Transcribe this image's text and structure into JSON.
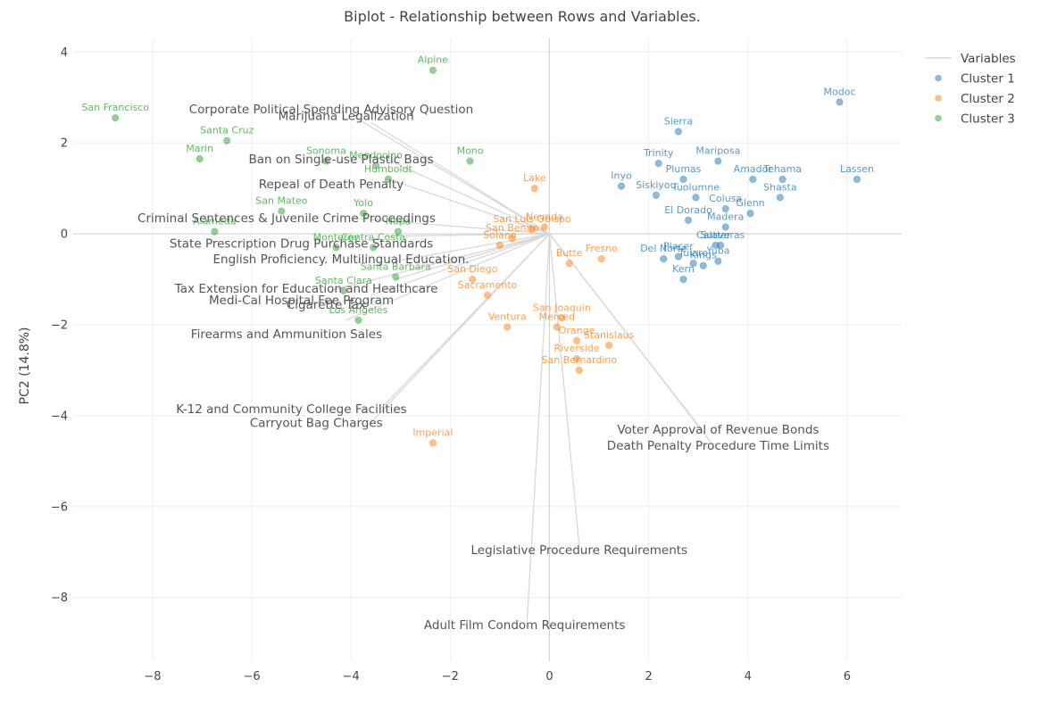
{
  "chart_data": {
    "type": "scatter",
    "title": "Biplot - Relationship between Rows and Variables.",
    "xlabel": "",
    "ylabel": "PC2 (14.8%)",
    "xlim": [
      -9.6,
      7.1
    ],
    "ylim": [
      -9.4,
      4.3
    ],
    "xticks": [
      -8,
      -6,
      -4,
      -2,
      0,
      2,
      4,
      6
    ],
    "yticks": [
      4,
      2,
      0,
      -2,
      -4,
      -6,
      -8
    ],
    "grid": true,
    "legend_position": "top-right",
    "legend": {
      "variables_label": "Variables",
      "variables_color": "#d8d8d8"
    },
    "variables": [
      {
        "name": "Corporate Political Spending Advisory Question",
        "x": -3.9,
        "y": 2.55,
        "lx": -4.4,
        "ly": 2.75
      },
      {
        "name": "Marijuana Legalization",
        "x": -3.6,
        "y": 2.45,
        "lx": -4.1,
        "ly": 2.6
      },
      {
        "name": "Ban on Single-use Plastic Bags",
        "x": -3.3,
        "y": 1.65,
        "lx": -4.2,
        "ly": 1.65
      },
      {
        "name": "Repeal of Death Penalty",
        "x": -3.1,
        "y": 1.15,
        "lx": -4.4,
        "ly": 1.1
      },
      {
        "name": "Criminal Sentences & Juvenile Crime Proceedings",
        "x": -4.0,
        "y": 0.35,
        "lx": -5.3,
        "ly": 0.35
      },
      {
        "name": "State Prescription Drug Purchase Standards",
        "x": -3.3,
        "y": -0.05,
        "lx": -5.0,
        "ly": -0.2
      },
      {
        "name": "English Proficiency. Multilingual Education.",
        "x": -3.1,
        "y": -0.6,
        "lx": -4.2,
        "ly": -0.55
      },
      {
        "name": "Tax Extension for Education and Healthcare",
        "x": -3.1,
        "y": -1.0,
        "lx": -4.9,
        "ly": -1.2
      },
      {
        "name": "Medi-Cal Hospital Fee Program",
        "x": -3.6,
        "y": -1.35,
        "lx": -5.0,
        "ly": -1.45
      },
      {
        "name": "Cigarette Tax",
        "x": -4.4,
        "y": -1.25,
        "lx": -4.5,
        "ly": -1.55
      },
      {
        "name": "Firearms and Ammunition Sales",
        "x": -4.1,
        "y": -1.9,
        "lx": -5.3,
        "ly": -2.2
      },
      {
        "name": "K-12 and Community College Facilities",
        "x": -3.4,
        "y": -3.85,
        "lx": -5.2,
        "ly": -3.85
      },
      {
        "name": "Carryout Bag Charges",
        "x": -3.6,
        "y": -4.15,
        "lx": -4.7,
        "ly": -4.15
      },
      {
        "name": "Voter Approval of Revenue Bonds",
        "x": 3.1,
        "y": -4.35,
        "lx": 3.4,
        "ly": -4.3
      },
      {
        "name": "Death Penalty Procedure Time Limits",
        "x": 3.3,
        "y": -4.65,
        "lx": 3.4,
        "ly": -4.65
      },
      {
        "name": "Legislative Procedure Requirements",
        "x": 0.6,
        "y": -6.85,
        "lx": 0.6,
        "ly": -6.95
      },
      {
        "name": "Adult Film Condom Requirements",
        "x": -0.45,
        "y": -8.5,
        "lx": -0.5,
        "ly": -8.6
      }
    ],
    "series": [
      {
        "name": "Cluster 1",
        "color": "#1f77b4",
        "points": [
          {
            "label": "Modoc",
            "x": 5.85,
            "y": 2.9
          },
          {
            "label": "Lassen",
            "x": 6.2,
            "y": 1.2
          },
          {
            "label": "Sierra",
            "x": 2.6,
            "y": 2.25
          },
          {
            "label": "Trinity",
            "x": 2.2,
            "y": 1.55
          },
          {
            "label": "Mariposa",
            "x": 3.4,
            "y": 1.6
          },
          {
            "label": "Plumas",
            "x": 2.7,
            "y": 1.2
          },
          {
            "label": "Amador",
            "x": 4.1,
            "y": 1.2
          },
          {
            "label": "Tehama",
            "x": 4.7,
            "y": 1.2
          },
          {
            "label": "Inyo",
            "x": 1.45,
            "y": 1.05
          },
          {
            "label": "Siskiyou",
            "x": 2.15,
            "y": 0.85
          },
          {
            "label": "Tuolumne",
            "x": 2.95,
            "y": 0.8
          },
          {
            "label": "Shasta",
            "x": 4.65,
            "y": 0.8
          },
          {
            "label": "Colusa",
            "x": 3.55,
            "y": 0.55
          },
          {
            "label": "Glenn",
            "x": 4.05,
            "y": 0.45
          },
          {
            "label": "El Dorado",
            "x": 2.8,
            "y": 0.3
          },
          {
            "label": "Madera",
            "x": 3.55,
            "y": 0.15
          },
          {
            "label": "Sutter",
            "x": 3.35,
            "y": -0.25
          },
          {
            "label": "Calaveras",
            "x": 3.45,
            "y": -0.25
          },
          {
            "label": "Del Norte",
            "x": 2.3,
            "y": -0.55
          },
          {
            "label": "Placer",
            "x": 2.6,
            "y": -0.5
          },
          {
            "label": "Tulare",
            "x": 2.9,
            "y": -0.65
          },
          {
            "label": "Kings",
            "x": 3.1,
            "y": -0.7
          },
          {
            "label": "Yuba",
            "x": 3.4,
            "y": -0.6
          },
          {
            "label": "Kern",
            "x": 2.7,
            "y": -1.0
          }
        ]
      },
      {
        "name": "Cluster 2",
        "color": "#ff7f0e",
        "points": [
          {
            "label": "Lake",
            "x": -0.3,
            "y": 1.0
          },
          {
            "label": "Nevada",
            "x": -0.1,
            "y": 0.15
          },
          {
            "label": "San Luis Obispo",
            "x": -0.35,
            "y": 0.1
          },
          {
            "label": "San Benito",
            "x": -0.75,
            "y": -0.1
          },
          {
            "label": "Solano",
            "x": -1.0,
            "y": -0.25
          },
          {
            "label": "Fresno",
            "x": 1.05,
            "y": -0.55
          },
          {
            "label": "Butte",
            "x": 0.4,
            "y": -0.65
          },
          {
            "label": "San Diego",
            "x": -1.55,
            "y": -1.0
          },
          {
            "label": "Sacramento",
            "x": -1.25,
            "y": -1.35
          },
          {
            "label": "Ventura",
            "x": -0.85,
            "y": -2.05
          },
          {
            "label": "San Joaquin",
            "x": 0.25,
            "y": -1.85
          },
          {
            "label": "Merced",
            "x": 0.15,
            "y": -2.05
          },
          {
            "label": "Orange",
            "x": 0.55,
            "y": -2.35
          },
          {
            "label": "Stanislaus",
            "x": 1.2,
            "y": -2.45
          },
          {
            "label": "Riverside",
            "x": 0.55,
            "y": -2.75
          },
          {
            "label": "San Bernardino",
            "x": 0.6,
            "y": -3.0
          },
          {
            "label": "Imperial",
            "x": -2.35,
            "y": -4.6
          }
        ]
      },
      {
        "name": "Cluster 3",
        "color": "#2ca02c",
        "points": [
          {
            "label": "San Francisco",
            "x": -8.75,
            "y": 2.55
          },
          {
            "label": "Alpine",
            "x": -2.35,
            "y": 3.6
          },
          {
            "label": "Santa Cruz",
            "x": -6.5,
            "y": 2.05
          },
          {
            "label": "Marin",
            "x": -7.05,
            "y": 1.65
          },
          {
            "label": "Sonoma",
            "x": -4.5,
            "y": 1.6
          },
          {
            "label": "Mendocino",
            "x": -3.5,
            "y": 1.5
          },
          {
            "label": "Humboldt",
            "x": -3.25,
            "y": 1.2
          },
          {
            "label": "Mono",
            "x": -1.6,
            "y": 1.6
          },
          {
            "label": "San Mateo",
            "x": -5.4,
            "y": 0.5
          },
          {
            "label": "Yolo",
            "x": -3.75,
            "y": 0.45
          },
          {
            "label": "Alameda",
            "x": -6.75,
            "y": 0.05
          },
          {
            "label": "Napa",
            "x": -3.05,
            "y": 0.05
          },
          {
            "label": "Monterey",
            "x": -4.3,
            "y": -0.3
          },
          {
            "label": "Contra Costa",
            "x": -3.55,
            "y": -0.3
          },
          {
            "label": "Santa Barbara",
            "x": -3.1,
            "y": -0.95
          },
          {
            "label": "Santa Clara",
            "x": -4.15,
            "y": -1.25
          },
          {
            "label": "Los Angeles",
            "x": -3.85,
            "y": -1.9
          }
        ]
      }
    ]
  }
}
